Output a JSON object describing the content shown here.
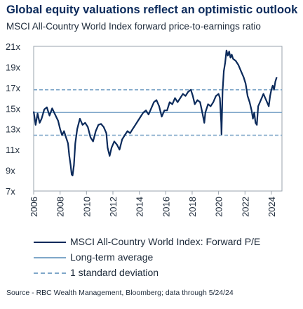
{
  "title": "Global equity valuations reflect an optimistic outlook",
  "subtitle": "MSCI All-Country World Index forward price-to-earnings ratio",
  "source": "Source - RBC Wealth Management, Bloomberg; data through 5/24/24",
  "colors": {
    "series": "#0b2a5b",
    "average": "#7fa7c9",
    "stdev": "#7fa7c9",
    "title": "#0b2a5b"
  },
  "chart_data": {
    "type": "line",
    "title": "Global equity valuations reflect an optimistic outlook",
    "subtitle": "MSCI All-Country World Index forward price-to-earnings ratio",
    "ylim": [
      7,
      21
    ],
    "xlim": [
      2006,
      2024.8
    ],
    "y_ticks": [
      7,
      9,
      11,
      13,
      15,
      17,
      19,
      21
    ],
    "y_tick_labels": [
      "7x",
      "9x",
      "11x",
      "13x",
      "15x",
      "17x",
      "19x",
      "21x"
    ],
    "x_ticks": [
      2006,
      2008,
      2010,
      2012,
      2014,
      2016,
      2018,
      2020,
      2022,
      2024
    ],
    "x_tick_labels": [
      "2006",
      "2008",
      "2010",
      "2012",
      "2014",
      "2016",
      "2018",
      "2020",
      "2022",
      "2024"
    ],
    "grid": false,
    "legend": [
      "MSCI All-Country World Index: Forward P/E",
      "Long-term average",
      "1 standard deviation"
    ],
    "legend_position": "bottom",
    "reference_lines": {
      "long_term_average": 14.6,
      "upper_1sd": 16.8,
      "lower_1sd": 12.4
    },
    "series": [
      {
        "name": "MSCI All-Country World Index: Forward P/E",
        "x": [
          2006.0,
          2006.15,
          2006.3,
          2006.45,
          2006.6,
          2006.8,
          2007.0,
          2007.2,
          2007.4,
          2007.55,
          2007.7,
          2007.85,
          2008.0,
          2008.15,
          2008.3,
          2008.45,
          2008.6,
          2008.7,
          2008.8,
          2008.88,
          2008.95,
          2009.05,
          2009.15,
          2009.3,
          2009.5,
          2009.7,
          2009.9,
          2010.1,
          2010.3,
          2010.5,
          2010.7,
          2010.9,
          2011.1,
          2011.3,
          2011.5,
          2011.6,
          2011.75,
          2011.9,
          2012.1,
          2012.3,
          2012.5,
          2012.7,
          2012.9,
          2013.1,
          2013.3,
          2013.5,
          2013.7,
          2013.9,
          2014.1,
          2014.3,
          2014.5,
          2014.7,
          2014.9,
          2015.1,
          2015.3,
          2015.5,
          2015.7,
          2015.9,
          2016.1,
          2016.3,
          2016.5,
          2016.7,
          2016.9,
          2017.1,
          2017.3,
          2017.5,
          2017.7,
          2017.9,
          2018.05,
          2018.2,
          2018.4,
          2018.6,
          2018.8,
          2018.92,
          2019.0,
          2019.2,
          2019.4,
          2019.6,
          2019.8,
          2020.0,
          2020.1,
          2020.2,
          2020.22,
          2020.3,
          2020.4,
          2020.5,
          2020.6,
          2020.7,
          2020.8,
          2020.9,
          2021.0,
          2021.1,
          2021.3,
          2021.5,
          2021.7,
          2021.9,
          2022.05,
          2022.2,
          2022.35,
          2022.5,
          2022.6,
          2022.7,
          2022.8,
          2022.9,
          2023.0,
          2023.2,
          2023.4,
          2023.6,
          2023.8,
          2023.9,
          2024.0,
          2024.1,
          2024.2,
          2024.3,
          2024.4
        ],
        "values": [
          14.7,
          13.4,
          14.5,
          13.6,
          14.0,
          14.9,
          15.1,
          14.3,
          15.0,
          14.6,
          14.2,
          13.8,
          13.0,
          12.4,
          12.8,
          12.2,
          11.6,
          10.4,
          9.5,
          8.6,
          8.5,
          9.5,
          11.6,
          13.0,
          14.0,
          13.4,
          13.6,
          13.2,
          12.2,
          11.8,
          12.8,
          13.4,
          13.5,
          13.2,
          12.6,
          11.2,
          10.4,
          11.2,
          11.8,
          11.5,
          11.0,
          12.0,
          12.4,
          12.8,
          12.6,
          13.0,
          13.4,
          13.8,
          14.2,
          14.6,
          14.8,
          14.4,
          15.0,
          15.6,
          15.8,
          15.2,
          14.2,
          14.8,
          14.8,
          15.6,
          15.4,
          16.0,
          15.6,
          16.0,
          16.4,
          16.2,
          16.6,
          16.8,
          16.2,
          15.4,
          15.8,
          15.6,
          14.4,
          13.6,
          14.6,
          15.4,
          15.2,
          15.6,
          16.2,
          16.4,
          16.0,
          13.6,
          12.5,
          16.6,
          18.6,
          19.4,
          20.6,
          20.1,
          20.5,
          19.9,
          20.2,
          19.8,
          19.6,
          19.2,
          18.6,
          18.0,
          17.4,
          16.2,
          15.6,
          14.8,
          14.0,
          14.6,
          13.6,
          13.4,
          15.2,
          15.8,
          16.4,
          15.8,
          15.2,
          16.2,
          16.8,
          17.2,
          16.8,
          17.6,
          18.0
        ]
      }
    ]
  }
}
